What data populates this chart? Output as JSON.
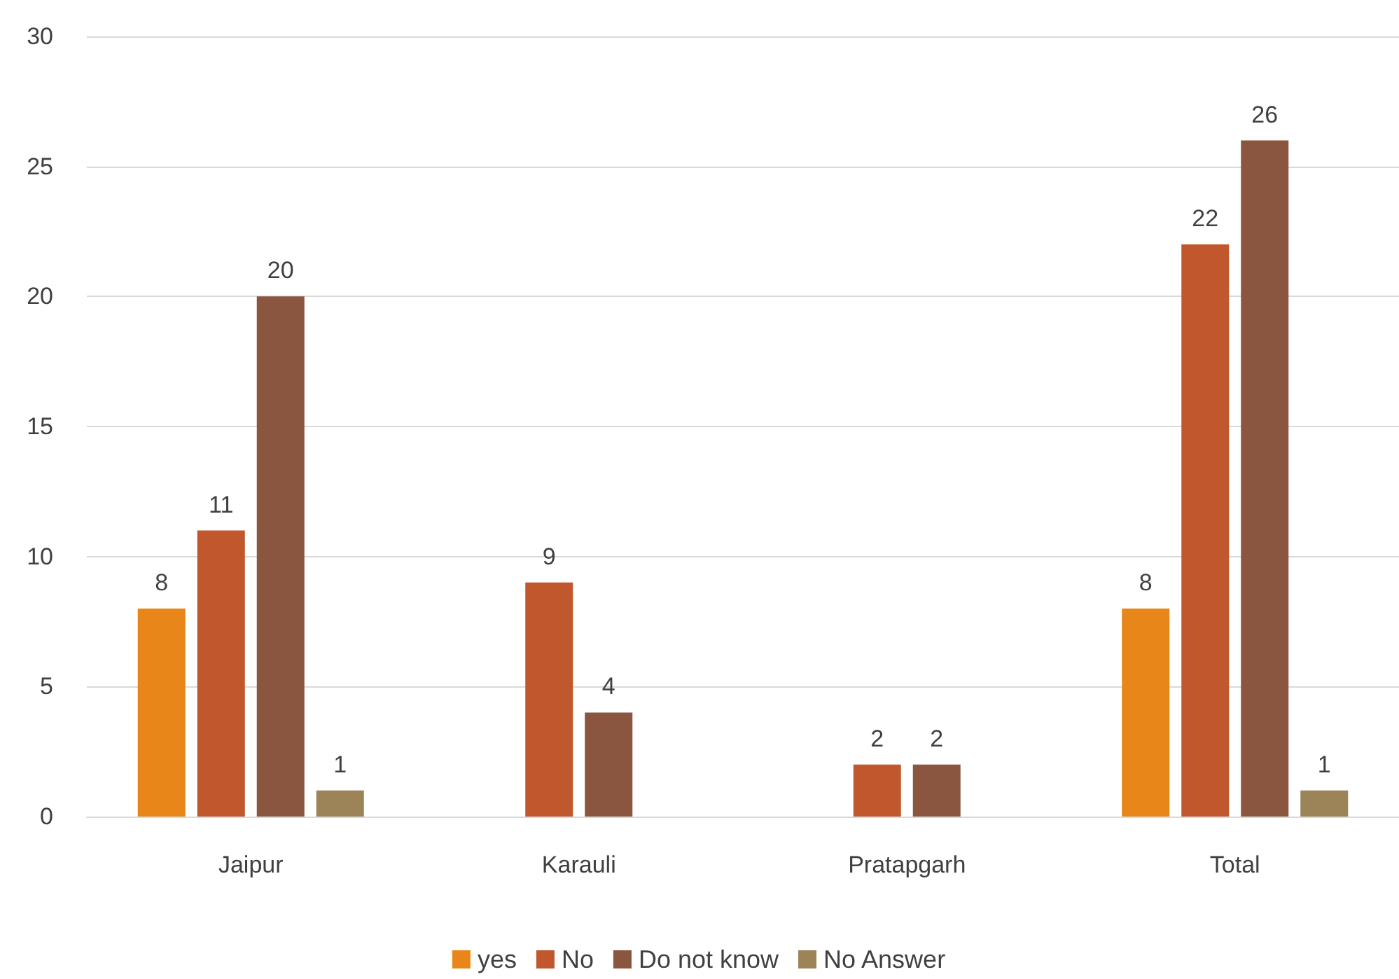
{
  "chart_data": {
    "type": "bar",
    "categories": [
      "Jaipur",
      "Karauli",
      "Pratapgarh",
      "Total"
    ],
    "series": [
      {
        "name": "yes",
        "color": "#e8861a",
        "values": [
          8,
          null,
          null,
          8
        ]
      },
      {
        "name": "No",
        "color": "#c0572d",
        "values": [
          11,
          9,
          2,
          22
        ]
      },
      {
        "name": "Do not know",
        "color": "#8b5640",
        "values": [
          20,
          4,
          2,
          26
        ]
      },
      {
        "name": "No Answer",
        "color": "#9c8458",
        "values": [
          1,
          null,
          null,
          1
        ]
      }
    ],
    "ylim": [
      0,
      30
    ],
    "yticks": [
      0,
      5,
      10,
      15,
      20,
      25,
      30
    ],
    "grid": "y",
    "legend": "bottom",
    "data_labels": true
  }
}
